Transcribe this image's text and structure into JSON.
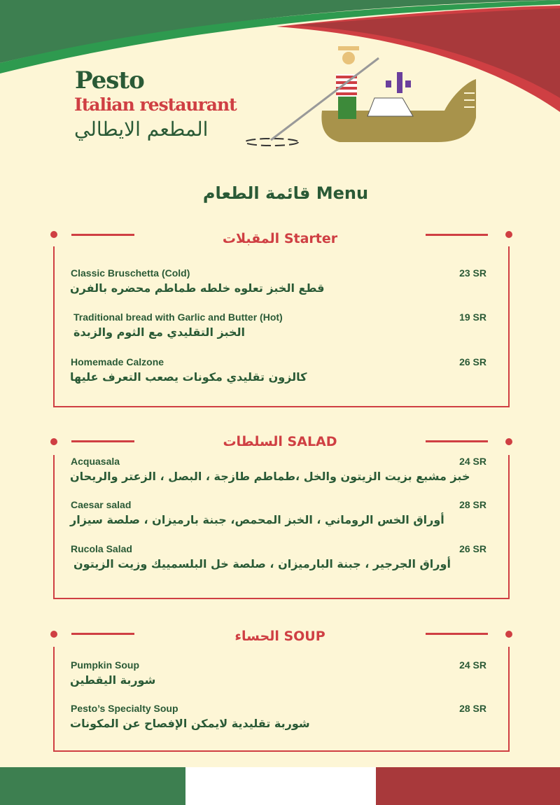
{
  "header": {
    "brand": "Pesto",
    "subtitle": "Italian restaurant",
    "subtitle_ar": "المطعم الايطالي",
    "logo": "gondolier-illustration"
  },
  "menu_title": "قائمة الطعام Menu",
  "colors": {
    "green": "#3d7f50",
    "red": "#a8393b",
    "accent_red": "#cf3f43",
    "text_green": "#2a5a36",
    "background": "#fdf6d6"
  },
  "sections": [
    {
      "title": "المقبلات Starter",
      "items": [
        {
          "name": "Classic Bruschetta  (Cold)",
          "desc": "قطع الخبز تعلوه خلطه طماطم محضره بالفرن",
          "price": "23 SR"
        },
        {
          "name": "Traditional bread with Garlic and Butter  (Hot)",
          "desc": "الخبز التقليدي مع الثوم والزبدة",
          "price": "19 SR"
        },
        {
          "name": "Homemade Calzone",
          "desc": "كالزون تقليدي مكونات يصعب التعرف عليها",
          "price": "26 SR"
        }
      ]
    },
    {
      "title": "السلطات  SALAD",
      "items": [
        {
          "name": "Acquasala",
          "desc": "خبز مشبع بزيت الزيتون والخل ،طماطم طازجة ، البصل ، الزعتر والريحان",
          "price": "24 SR"
        },
        {
          "name": "Caesar salad",
          "desc": "أوراق الخس الروماني ، الخبز المحمص، جبنة بارميزان  ، صلصة سيزار",
          "price": "28 SR"
        },
        {
          "name": "Rucola  Salad",
          "desc": "أوراق الجرجير ، جبنة البارميزان ، صلصة خل البلسمييك وزيت الزيتون",
          "price": "26 SR"
        }
      ]
    },
    {
      "title": "الحساء  SOUP",
      "items": [
        {
          "name": "Pumpkin Soup",
          "desc": "شوربة اليقطين",
          "price": "24 SR"
        },
        {
          "name": "Pesto’s  Specialty Soup",
          "desc": "شوربة تقليدية لايمكن الإفصاح عن المكونات",
          "price": "28 SR"
        }
      ]
    }
  ]
}
